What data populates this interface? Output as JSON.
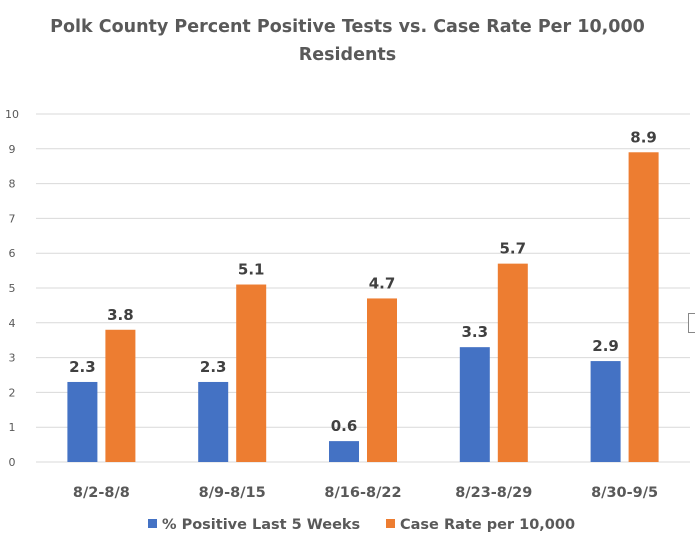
{
  "chart_data": {
    "type": "bar",
    "title": "Polk County Percent Positive Tests vs. Case Rate Per 10,000 Residents",
    "title_lines": [
      "Polk County Percent Positive Tests vs. Case Rate Per 10,000",
      "Residents"
    ],
    "categories": [
      "8/2-8/8",
      "8/9-8/15",
      "8/16-8/22",
      "8/23-8/29",
      "8/30-9/5"
    ],
    "series": [
      {
        "name": "% Positive Last 5 Weeks",
        "color": "#4472C4",
        "values": [
          2.3,
          2.3,
          0.6,
          3.3,
          2.9
        ]
      },
      {
        "name": "Case Rate per 10,000",
        "color": "#ED7D31",
        "values": [
          3.8,
          5.1,
          4.7,
          5.7,
          8.9
        ]
      }
    ],
    "ylim": [
      0,
      10
    ],
    "yticks": [
      0,
      1,
      2,
      3,
      4,
      5,
      6,
      7,
      8,
      9,
      10
    ],
    "xlabel": "",
    "ylabel": "",
    "grid": true,
    "legend": "bottom",
    "data_labels": true
  }
}
